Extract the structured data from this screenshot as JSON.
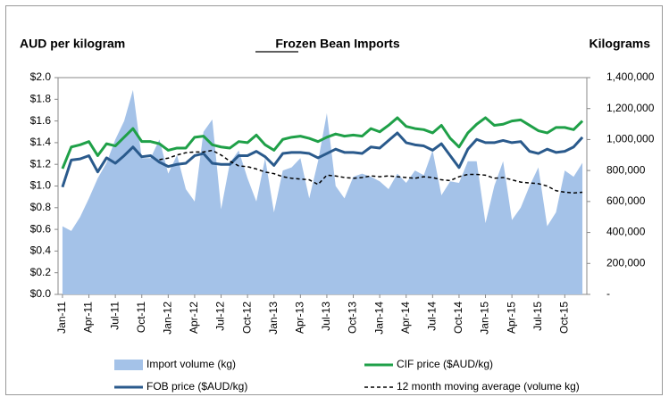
{
  "chart_data": {
    "type": "combo",
    "title": "Frozen Bean Imports",
    "y_label": "AUD per kilogram",
    "y2_label": "Kilograms",
    "categories": [
      "Jan-11",
      null,
      null,
      "Apr-11",
      null,
      null,
      "Jul-11",
      null,
      null,
      "Oct-11",
      null,
      null,
      "Jan-12",
      null,
      null,
      "Apr-12",
      null,
      null,
      "Jul-12",
      null,
      null,
      "Oct-12",
      null,
      null,
      "Jan-13",
      null,
      null,
      "Apr-13",
      null,
      null,
      "Jul-13",
      null,
      null,
      "Oct-13",
      null,
      null,
      "Jan-14",
      null,
      null,
      "Apr-14",
      null,
      null,
      "Jul-14",
      null,
      null,
      "Oct-14",
      null,
      null,
      "Jan-15",
      null,
      null,
      "Apr-15",
      null,
      null,
      "Jul-15",
      null,
      null,
      "Oct-15",
      null,
      null
    ],
    "ylim": [
      0,
      2.0
    ],
    "yticks": [
      {
        "value": 0,
        "label": "$0.0"
      },
      {
        "value": 0.2,
        "label": "$0.2"
      },
      {
        "value": 0.4,
        "label": "$0.4"
      },
      {
        "value": 0.6,
        "label": "$0.6"
      },
      {
        "value": 0.8,
        "label": "$0.8"
      },
      {
        "value": 1.0,
        "label": "$1.0"
      },
      {
        "value": 1.2,
        "label": "$1.2"
      },
      {
        "value": 1.4,
        "label": "$1.4"
      },
      {
        "value": 1.6,
        "label": "$1.6"
      },
      {
        "value": 1.8,
        "label": "$1.8"
      },
      {
        "value": 2.0,
        "label": "$2.0"
      }
    ],
    "y2lim": [
      0,
      1400000
    ],
    "y2ticks": [
      {
        "value": 0,
        "label": "-"
      },
      {
        "value": 200000,
        "label": "200,000"
      },
      {
        "value": 400000,
        "label": "400,000"
      },
      {
        "value": 600000,
        "label": "600,000"
      },
      {
        "value": 800000,
        "label": "800,000"
      },
      {
        "value": 1000000,
        "label": "1,000,000"
      },
      {
        "value": 1200000,
        "label": "1,200,000"
      },
      {
        "value": 1400000,
        "label": "1,400,000"
      }
    ],
    "series": [
      {
        "name": "Import volume (kg)",
        "kind": "area",
        "axis": "y2",
        "color": "#a4c2e8",
        "values": [
          440000,
          410000,
          500000,
          620000,
          750000,
          850000,
          1000000,
          1120000,
          1320000,
          880000,
          880000,
          1000000,
          780000,
          900000,
          680000,
          600000,
          1050000,
          1130000,
          550000,
          850000,
          930000,
          750000,
          600000,
          880000,
          530000,
          800000,
          820000,
          880000,
          620000,
          860000,
          1170000,
          700000,
          620000,
          760000,
          780000,
          760000,
          730000,
          680000,
          780000,
          720000,
          800000,
          770000,
          930000,
          640000,
          730000,
          720000,
          860000,
          860000,
          460000,
          700000,
          860000,
          480000,
          560000,
          700000,
          820000,
          440000,
          530000,
          800000,
          760000,
          850000
        ]
      },
      {
        "name": "CIF price ($AUD/kg)",
        "kind": "line",
        "color": "#1fa048",
        "values": [
          1.16,
          1.36,
          1.38,
          1.41,
          1.28,
          1.39,
          1.37,
          1.45,
          1.53,
          1.41,
          1.41,
          1.39,
          1.33,
          1.35,
          1.35,
          1.45,
          1.46,
          1.38,
          1.36,
          1.35,
          1.41,
          1.4,
          1.47,
          1.38,
          1.33,
          1.43,
          1.45,
          1.46,
          1.44,
          1.41,
          1.45,
          1.48,
          1.46,
          1.47,
          1.46,
          1.53,
          1.5,
          1.56,
          1.63,
          1.55,
          1.53,
          1.52,
          1.49,
          1.56,
          1.44,
          1.36,
          1.49,
          1.57,
          1.63,
          1.56,
          1.57,
          1.6,
          1.61,
          1.56,
          1.51,
          1.49,
          1.54,
          1.54,
          1.52,
          1.6
        ]
      },
      {
        "name": "FOB price ($AUD/kg)",
        "kind": "line",
        "color": "#2a5a8c",
        "values": [
          0.99,
          1.24,
          1.25,
          1.28,
          1.13,
          1.26,
          1.21,
          1.28,
          1.36,
          1.27,
          1.28,
          1.22,
          1.18,
          1.2,
          1.21,
          1.28,
          1.3,
          1.21,
          1.2,
          1.2,
          1.28,
          1.28,
          1.32,
          1.27,
          1.19,
          1.3,
          1.31,
          1.31,
          1.3,
          1.26,
          1.3,
          1.34,
          1.31,
          1.31,
          1.3,
          1.36,
          1.35,
          1.42,
          1.49,
          1.4,
          1.38,
          1.37,
          1.33,
          1.39,
          1.28,
          1.17,
          1.34,
          1.43,
          1.4,
          1.4,
          1.42,
          1.4,
          1.41,
          1.32,
          1.3,
          1.34,
          1.31,
          1.32,
          1.36,
          1.45
        ]
      },
      {
        "name": "12 month moving average (volume kg)",
        "kind": "line",
        "axis": "y2",
        "color": "#000000",
        "dashed": true,
        "values": [
          null,
          null,
          null,
          null,
          null,
          null,
          null,
          null,
          null,
          null,
          null,
          870000,
          880000,
          900000,
          915000,
          920000,
          920000,
          930000,
          900000,
          860000,
          830000,
          825000,
          810000,
          790000,
          780000,
          760000,
          750000,
          745000,
          740000,
          710000,
          770000,
          765000,
          755000,
          750000,
          755000,
          765000,
          760000,
          765000,
          760000,
          755000,
          750000,
          760000,
          755000,
          740000,
          735000,
          760000,
          775000,
          775000,
          770000,
          750000,
          755000,
          740000,
          725000,
          720000,
          715000,
          700000,
          670000,
          660000,
          655000,
          660000
        ]
      }
    ]
  }
}
